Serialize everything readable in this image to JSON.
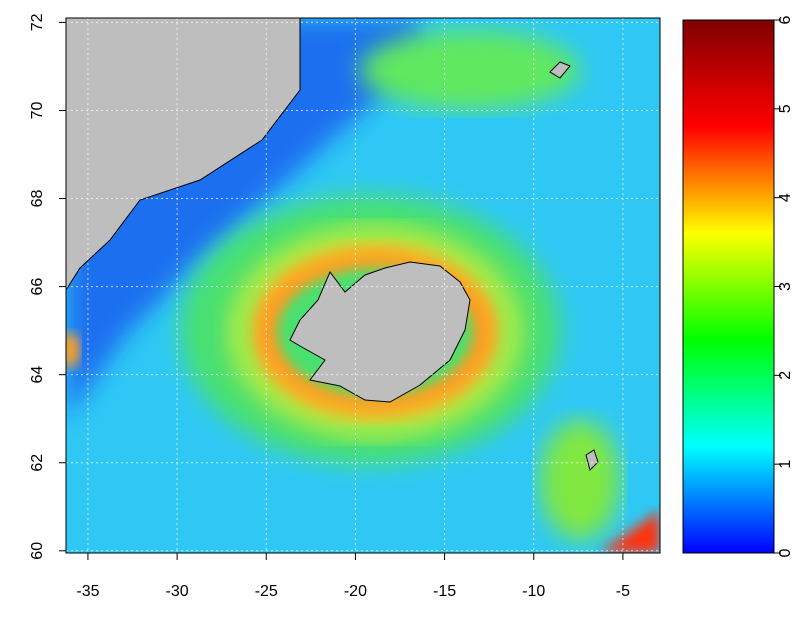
{
  "chart_data": {
    "type": "heatmap",
    "xlim": [
      -36.23,
      -2.92
    ],
    "xticks": [
      -35,
      -30,
      -25,
      -20,
      -15,
      -10,
      -5
    ],
    "ylim": [
      59.95,
      72.1
    ],
    "yticks": [
      60,
      62,
      64,
      66,
      68,
      70,
      72
    ],
    "grid": true,
    "colorbar": {
      "lim": [
        0,
        6
      ],
      "ticks": [
        0,
        1,
        2,
        3,
        4,
        5,
        6
      ],
      "colors": [
        "#0000ff",
        "#00ffff",
        "#00ff00",
        "#ffff00",
        "#ff0000",
        "#800000"
      ]
    }
  }
}
